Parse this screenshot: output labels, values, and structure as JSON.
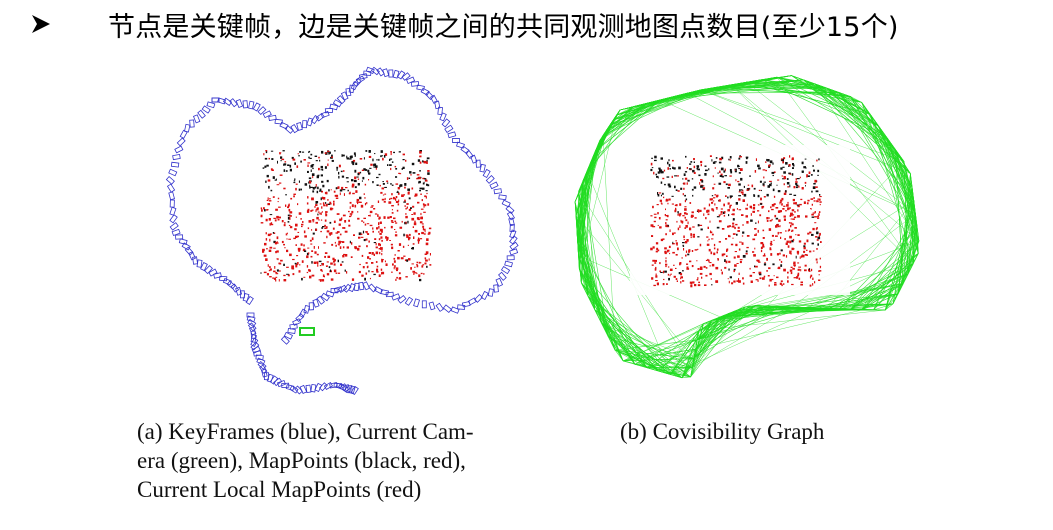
{
  "headline": {
    "bullet_icon": "arrowhead-bullet-icon",
    "text": "节点是关键帧，边是关键帧之间的共同观测地图点数目(至少15个)"
  },
  "figure_a": {
    "caption_lines": [
      "(a) KeyFrames (blue), Current Cam-",
      "era (green), MapPoints (black, red),",
      "Current Local MapPoints (red)"
    ],
    "colors": {
      "keyframes": "#3333cc",
      "current_camera": "#22cc22",
      "mappoints_black": "#111111",
      "mappoints_red": "#dd1111"
    }
  },
  "figure_b": {
    "caption": "(b) Covisibility Graph",
    "colors": {
      "edges": "#22dd22",
      "mappoints_black": "#111111",
      "mappoints_red": "#dd1111"
    }
  }
}
